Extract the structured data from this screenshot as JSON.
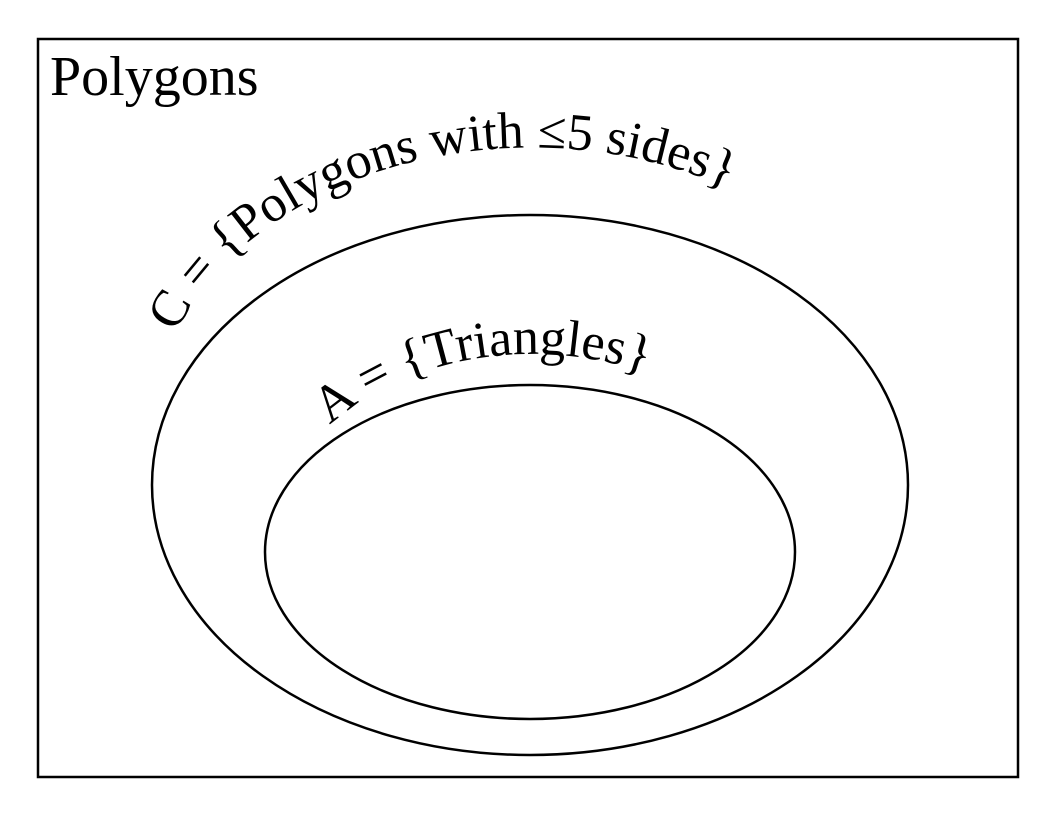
{
  "universe": {
    "label": "Polygons"
  },
  "sets": [
    {
      "id": "C",
      "label": "C = {Polygons with ≤5 sides}"
    },
    {
      "id": "A",
      "label": "A = {Triangles}"
    }
  ],
  "colors": {
    "stroke": "#000000",
    "background": "#ffffff"
  }
}
